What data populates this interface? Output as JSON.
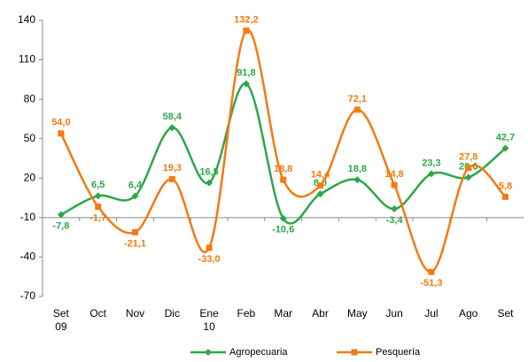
{
  "chart_data": {
    "type": "line",
    "categories": [
      "Set\n09",
      "Oct",
      "Nov",
      "Dic",
      "Ene\n10",
      "Feb",
      "Mar",
      "Abr",
      "May",
      "Jun",
      "Jul",
      "Ago",
      "Set"
    ],
    "series": [
      {
        "name": "Agropecuaria",
        "color": "#2aa84a",
        "marker": "diamond",
        "values": [
          -7.8,
          6.5,
          6.4,
          58.4,
          16.5,
          91.8,
          -10.6,
          8.0,
          18.8,
          -3.4,
          23.3,
          20.6,
          42.7
        ],
        "value_labels": [
          "-7,8",
          "6,5",
          "6,4",
          "58,4",
          "16,5",
          "91,8",
          "-10,6",
          "8,0",
          "18,8",
          "-3,4",
          "23,3",
          "20,6",
          "42,7"
        ]
      },
      {
        "name": "Pesquería",
        "color": "#f47a12",
        "marker": "square",
        "values": [
          54.0,
          -1.7,
          -21.1,
          19.3,
          -33.0,
          132.2,
          18.8,
          14.4,
          72.1,
          14.8,
          -51.3,
          27.8,
          5.8
        ],
        "value_labels": [
          "54,0",
          "-1,7",
          "-21,1",
          "19,3",
          "-33,0",
          "132,2",
          "18,8",
          "14,4",
          "72,1",
          "14,8",
          "-51,3",
          "27,8",
          "5,8"
        ]
      }
    ],
    "ylim": [
      -70,
      140
    ],
    "yticks": [
      -70,
      -40,
      -10,
      20,
      50,
      80,
      110,
      140
    ],
    "x_axis_at": -10,
    "grid": false,
    "legend": "bottom"
  }
}
